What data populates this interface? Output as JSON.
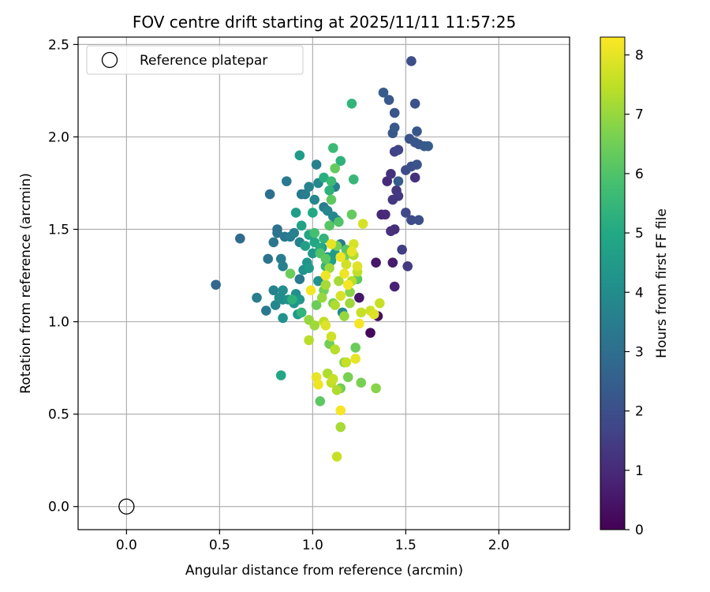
{
  "chart_data": {
    "type": "scatter",
    "title": "FOV centre drift starting at 2025/11/11 11:57:25",
    "xlabel": "Angular distance from reference (arcmin)",
    "ylabel": "Rotation from reference (arcmin)",
    "xlim": [
      -0.26,
      2.38
    ],
    "ylim": [
      -0.125,
      2.54
    ],
    "xticks": [
      "0.0",
      "0.5",
      "1.0",
      "1.5",
      "2.0"
    ],
    "yticks": [
      "0.0",
      "0.5",
      "1.0",
      "1.5",
      "2.0",
      "2.5"
    ],
    "grid": true,
    "legend": {
      "position": "top-left",
      "entries": [
        "Reference platepar"
      ]
    },
    "reference_point": {
      "x": 0.0,
      "y": 0.0,
      "label": "Reference platepar"
    },
    "colorbar": {
      "label": "Hours from first FF file",
      "range": [
        0,
        8.3
      ],
      "ticks": [
        "0",
        "1",
        "2",
        "3",
        "4",
        "5",
        "6",
        "7",
        "8"
      ],
      "colormap": "viridis"
    },
    "points": [
      [
        1.31,
        0.94,
        0.2
      ],
      [
        1.35,
        1.03,
        0.3
      ],
      [
        1.34,
        1.32,
        0.5
      ],
      [
        1.43,
        1.32,
        0.6
      ],
      [
        1.44,
        1.19,
        0.8
      ],
      [
        1.25,
        1.13,
        0.5
      ],
      [
        1.37,
        1.58,
        0.9
      ],
      [
        1.39,
        1.58,
        1.0
      ],
      [
        1.42,
        1.49,
        1.2
      ],
      [
        1.44,
        1.5,
        1.1
      ],
      [
        1.4,
        1.76,
        1.0
      ],
      [
        1.42,
        1.8,
        1.2
      ],
      [
        1.45,
        1.71,
        1.3
      ],
      [
        1.46,
        1.68,
        1.4
      ],
      [
        1.43,
        1.66,
        1.3
      ],
      [
        1.48,
        1.39,
        1.5
      ],
      [
        1.51,
        1.3,
        1.4
      ],
      [
        1.55,
        1.78,
        1.2
      ],
      [
        1.44,
        1.92,
        1.6
      ],
      [
        1.46,
        1.93,
        1.7
      ],
      [
        1.5,
        1.59,
        1.8
      ],
      [
        1.53,
        1.55,
        1.9
      ],
      [
        1.57,
        1.55,
        2.0
      ],
      [
        1.5,
        1.82,
        1.9
      ],
      [
        1.53,
        1.84,
        2.0
      ],
      [
        1.56,
        1.85,
        2.1
      ],
      [
        1.52,
        1.99,
        2.1
      ],
      [
        1.55,
        1.97,
        2.2
      ],
      [
        1.57,
        1.96,
        2.2
      ],
      [
        1.6,
        1.95,
        2.3
      ],
      [
        1.56,
        2.03,
        2.2
      ],
      [
        1.43,
        2.02,
        2.2
      ],
      [
        1.44,
        2.05,
        2.3
      ],
      [
        1.44,
        2.13,
        2.2
      ],
      [
        1.41,
        2.2,
        2.3
      ],
      [
        1.38,
        2.24,
        2.4
      ],
      [
        1.55,
        2.18,
        2.1
      ],
      [
        1.53,
        2.41,
        2.0
      ],
      [
        1.62,
        1.95,
        2.4
      ],
      [
        1.46,
        1.76,
        2.4
      ],
      [
        0.48,
        1.2,
        2.8
      ],
      [
        0.61,
        1.45,
        2.9
      ],
      [
        0.7,
        1.13,
        3.5
      ],
      [
        0.75,
        1.06,
        3.3
      ],
      [
        0.76,
        1.34,
        3.2
      ],
      [
        0.77,
        1.69,
        3.0
      ],
      [
        0.79,
        1.43,
        3.3
      ],
      [
        0.81,
        1.5,
        3.1
      ],
      [
        0.81,
        1.48,
        3.2
      ],
      [
        0.83,
        1.34,
        3.5
      ],
      [
        0.84,
        1.3,
        3.6
      ],
      [
        0.85,
        1.46,
        3.3
      ],
      [
        0.86,
        1.76,
        3.4
      ],
      [
        0.88,
        1.46,
        3.5
      ],
      [
        0.9,
        1.48,
        3.6
      ],
      [
        0.93,
        1.43,
        3.7
      ],
      [
        0.93,
        1.23,
        3.4
      ],
      [
        0.94,
        1.69,
        3.3
      ],
      [
        0.96,
        1.69,
        3.5
      ],
      [
        0.98,
        1.73,
        3.7
      ],
      [
        1.01,
        1.66,
        3.8
      ],
      [
        1.02,
        1.85,
        3.6
      ],
      [
        1.03,
        1.75,
        3.9
      ],
      [
        1.06,
        1.62,
        3.5
      ],
      [
        1.08,
        1.6,
        3.8
      ],
      [
        1.11,
        1.57,
        3.9
      ],
      [
        1.12,
        1.73,
        3.6
      ],
      [
        1.13,
        1.55,
        3.7
      ],
      [
        1.15,
        1.42,
        3.4
      ],
      [
        1.16,
        1.05,
        3.9
      ],
      [
        0.79,
        1.17,
        3.7
      ],
      [
        0.8,
        1.09,
        3.8
      ],
      [
        0.82,
        1.13,
        4.0
      ],
      [
        0.84,
        1.17,
        4.1
      ],
      [
        0.84,
        1.12,
        4.0
      ],
      [
        0.87,
        1.12,
        4.2
      ],
      [
        0.9,
        1.1,
        4.3
      ],
      [
        0.91,
        1.15,
        4.1
      ],
      [
        0.93,
        1.12,
        4.4
      ],
      [
        0.95,
        1.28,
        4.2
      ],
      [
        0.97,
        1.32,
        4.3
      ],
      [
        0.98,
        1.29,
        4.5
      ],
      [
        1.0,
        1.37,
        4.4
      ],
      [
        1.03,
        1.22,
        4.2
      ],
      [
        1.05,
        1.4,
        4.4
      ],
      [
        1.08,
        1.35,
        4.6
      ],
      [
        1.1,
        1.33,
        4.7
      ],
      [
        1.12,
        1.37,
        4.5
      ],
      [
        0.84,
        1.02,
        4.2
      ],
      [
        0.92,
        1.04,
        4.4
      ],
      [
        0.93,
        1.9,
        4.5
      ],
      [
        0.91,
        1.59,
        4.6
      ],
      [
        0.94,
        1.52,
        4.8
      ],
      [
        0.96,
        1.41,
        4.7
      ],
      [
        0.98,
        1.47,
        4.9
      ],
      [
        1.0,
        1.59,
        5.0
      ],
      [
        1.01,
        1.43,
        4.9
      ],
      [
        1.04,
        1.4,
        5.1
      ],
      [
        1.06,
        1.78,
        5.2
      ],
      [
        1.09,
        1.71,
        5.3
      ],
      [
        0.83,
        0.71,
        4.9
      ],
      [
        1.15,
        1.87,
        5.3
      ],
      [
        1.21,
        2.18,
        5.4
      ],
      [
        1.22,
        1.77,
        5.5
      ],
      [
        1.11,
        1.94,
        5.6
      ],
      [
        0.89,
        1.12,
        5.3
      ],
      [
        1.06,
        1.45,
        5.4
      ],
      [
        1.07,
        1.3,
        5.5
      ],
      [
        1.1,
        1.76,
        5.6
      ],
      [
        0.94,
        1.05,
        5.4
      ],
      [
        1.01,
        1.48,
        5.8
      ],
      [
        1.04,
        1.37,
        6.0
      ],
      [
        1.07,
        1.34,
        6.2
      ],
      [
        1.09,
        1.52,
        6.1
      ],
      [
        1.12,
        1.83,
        6.3
      ],
      [
        1.1,
        1.66,
        6.2
      ],
      [
        1.14,
        1.54,
        6.0
      ],
      [
        1.18,
        1.39,
        6.1
      ],
      [
        1.21,
        1.58,
        6.3
      ],
      [
        1.24,
        1.23,
        6.2
      ],
      [
        0.88,
        1.26,
        6.4
      ],
      [
        1.04,
        0.57,
        6.2
      ],
      [
        1.09,
        0.88,
        6.5
      ],
      [
        1.13,
        1.41,
        6.6
      ],
      [
        1.17,
        1.35,
        6.5
      ],
      [
        1.02,
        1.09,
        6.4
      ],
      [
        1.06,
        1.17,
        6.5
      ],
      [
        1.11,
        1.1,
        6.6
      ],
      [
        1.15,
        0.64,
        6.5
      ],
      [
        1.17,
        0.78,
        6.7
      ],
      [
        1.19,
        0.7,
        6.6
      ],
      [
        1.23,
        0.86,
        6.4
      ],
      [
        1.26,
        0.67,
        6.6
      ],
      [
        1.34,
        0.64,
        6.8
      ],
      [
        1.2,
        1.16,
        6.8
      ],
      [
        0.98,
        1.01,
        7.0
      ],
      [
        1.01,
        0.98,
        7.1
      ],
      [
        1.05,
        1.13,
        7.0
      ],
      [
        1.07,
        1.2,
        7.2
      ],
      [
        1.09,
        1.29,
        7.1
      ],
      [
        1.12,
        1.09,
        7.3
      ],
      [
        1.14,
        1.22,
        7.2
      ],
      [
        1.17,
        1.03,
        7.0
      ],
      [
        1.2,
        1.1,
        7.1
      ],
      [
        1.22,
        1.36,
        7.3
      ],
      [
        0.98,
        0.9,
        7.4
      ],
      [
        1.06,
        1.0,
        7.5
      ],
      [
        1.08,
        0.72,
        7.3
      ],
      [
        1.1,
        0.67,
        7.5
      ],
      [
        1.12,
        0.85,
        7.4
      ],
      [
        1.15,
        0.43,
        7.2
      ],
      [
        1.18,
        0.78,
        7.6
      ],
      [
        1.21,
        1.22,
        7.4
      ],
      [
        1.24,
        1.27,
        7.5
      ],
      [
        1.26,
        1.05,
        7.6
      ],
      [
        1.1,
        0.92,
        7.7
      ],
      [
        1.13,
        0.27,
        7.6
      ],
      [
        1.15,
        1.14,
        7.8
      ],
      [
        1.18,
        1.31,
        7.7
      ],
      [
        1.22,
        1.42,
        7.8
      ],
      [
        1.24,
        1.3,
        7.9
      ],
      [
        1.27,
        1.53,
        7.8
      ],
      [
        1.31,
        1.06,
        7.7
      ],
      [
        1.33,
        1.04,
        7.9
      ],
      [
        1.36,
        1.1,
        7.6
      ],
      [
        1.02,
        0.7,
        8.0
      ],
      [
        1.03,
        0.66,
        8.1
      ],
      [
        1.07,
        0.98,
        7.9
      ],
      [
        1.07,
        1.25,
        8.1
      ],
      [
        1.1,
        1.42,
        8.0
      ],
      [
        1.15,
        0.52,
        8.2
      ],
      [
        1.17,
        1.26,
        8.1
      ],
      [
        1.19,
        1.2,
        8.2
      ],
      [
        1.21,
        1.38,
        8.0
      ],
      [
        1.25,
        0.99,
        8.2
      ],
      [
        1.23,
        0.8,
        8.0
      ],
      [
        0.99,
        1.17,
        8.2
      ],
      [
        1.13,
        0.63,
        7.3
      ],
      [
        1.15,
        1.35,
        8.1
      ],
      [
        1.11,
        0.69,
        7.6
      ]
    ]
  }
}
